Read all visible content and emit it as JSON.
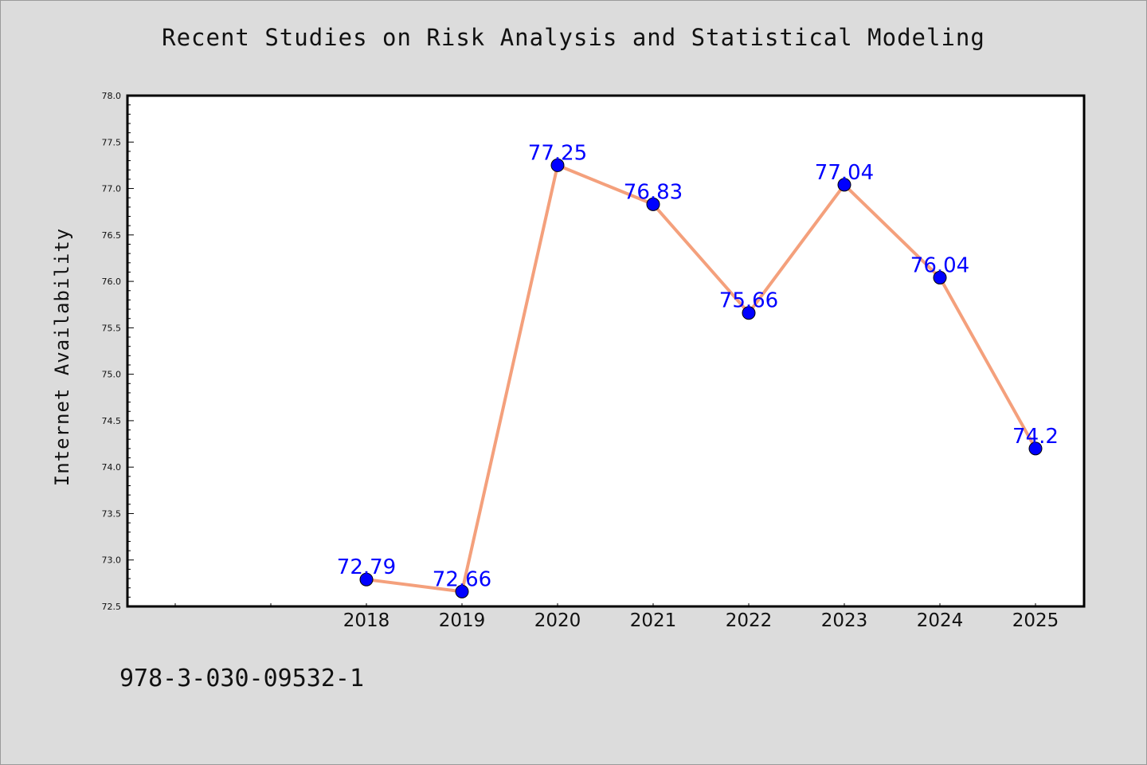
{
  "page": {
    "title": "Recent Studies on Risk Analysis and Statistical Modeling",
    "footer_code": "978-3-030-09532-1"
  },
  "colors": {
    "background": "#dcdcdc",
    "plot_background": "#ffffff",
    "line": "#f4a07c",
    "marker": "#0000ff",
    "data_label": "#0000ff"
  },
  "chart_data": {
    "type": "line",
    "title": "Recent Studies on Risk Analysis and Statistical Modeling",
    "xlabel": "",
    "ylabel": "Internet Availability",
    "categories": [
      "2018",
      "2019",
      "2020",
      "2021",
      "2022",
      "2023",
      "2024",
      "2025"
    ],
    "values": [
      72.79,
      72.66,
      77.25,
      76.83,
      75.66,
      77.04,
      76.04,
      74.2
    ],
    "data_labels": [
      "72.79",
      "72.66",
      "77.25",
      "76.83",
      "75.66",
      "77.04",
      "76.04",
      "74.2"
    ],
    "x_ticks_unlabeled_before": 2,
    "ylim": [
      72.5,
      78.0
    ],
    "yticks": [
      "72.5",
      "73.0",
      "73.5",
      "74.0",
      "74.5",
      "75.0",
      "75.5",
      "76.0",
      "76.5",
      "77.0",
      "77.5",
      "78.0"
    ],
    "grid": false,
    "legend": "none",
    "marker": "circle",
    "marker_color": "blue",
    "line_color": "lightsalmon"
  }
}
